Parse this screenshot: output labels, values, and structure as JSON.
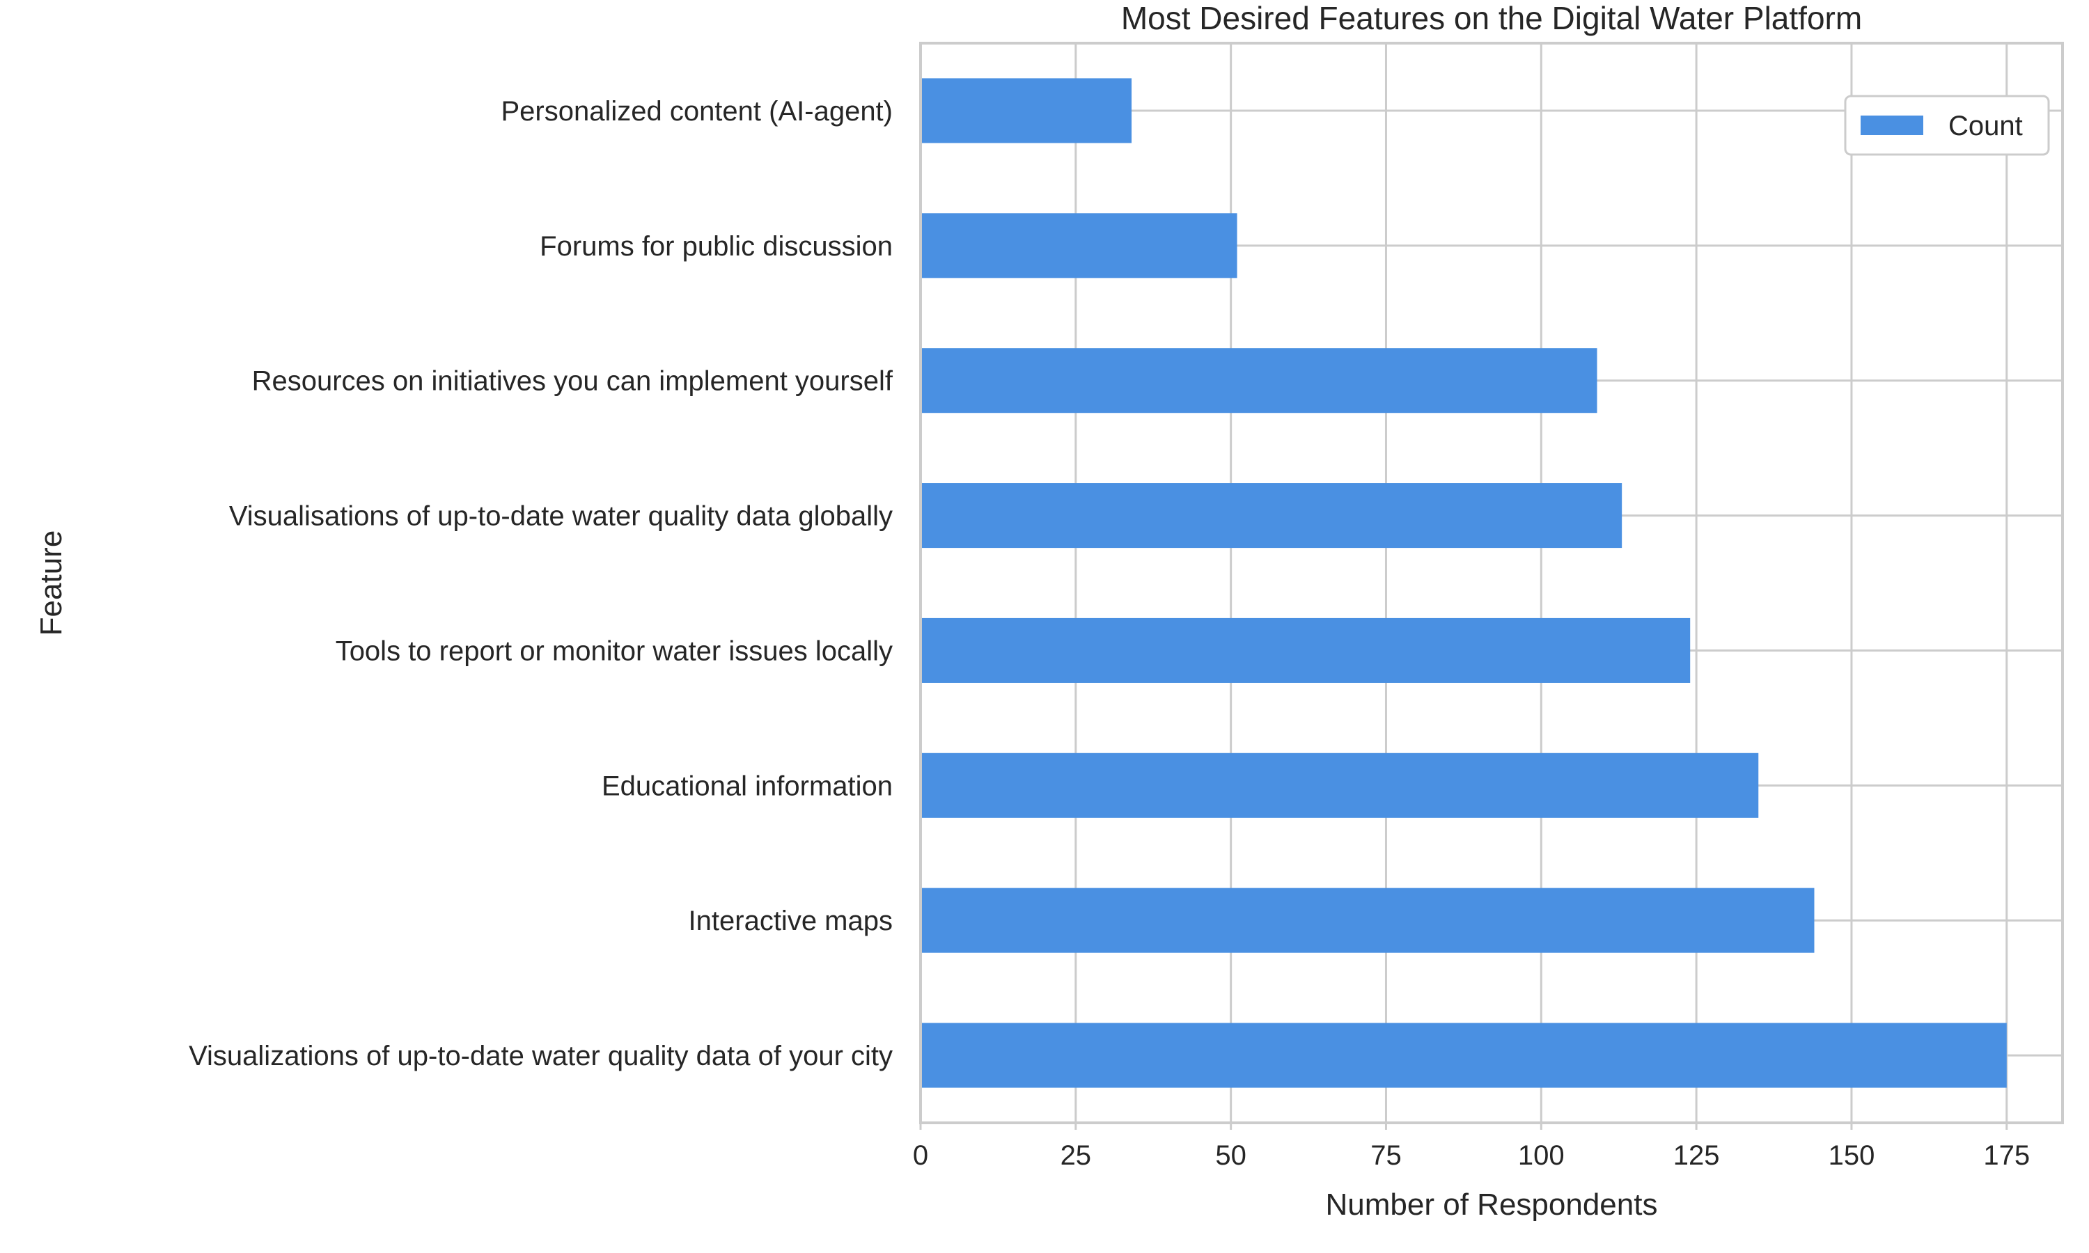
{
  "chart_data": {
    "type": "bar",
    "orientation": "horizontal",
    "title": "Most Desired Features on the Digital Water Platform",
    "xlabel": "Number of Respondents",
    "ylabel": "Feature",
    "categories": [
      "Visualizations of up-to-date water quality data of your city",
      "Interactive maps",
      "Educational information",
      "Tools to report or monitor water issues locally",
      "Visualisations of up-to-date water quality data globally",
      "Resources on initiatives you can implement yourself",
      "Forums for public discussion",
      "Personalized content (AI-agent)"
    ],
    "series": [
      {
        "name": "Count",
        "values": [
          175,
          144,
          135,
          124,
          113,
          109,
          51,
          34
        ],
        "color": "#4a90e2"
      }
    ],
    "xlim": [
      0,
      184
    ],
    "xticks": [
      0,
      25,
      50,
      75,
      100,
      125,
      150,
      175
    ],
    "xtick_labels": [
      "0",
      "25",
      "50",
      "75",
      "100",
      "125",
      "150",
      "175"
    ],
    "grid": true,
    "legend_position": "top-right"
  }
}
